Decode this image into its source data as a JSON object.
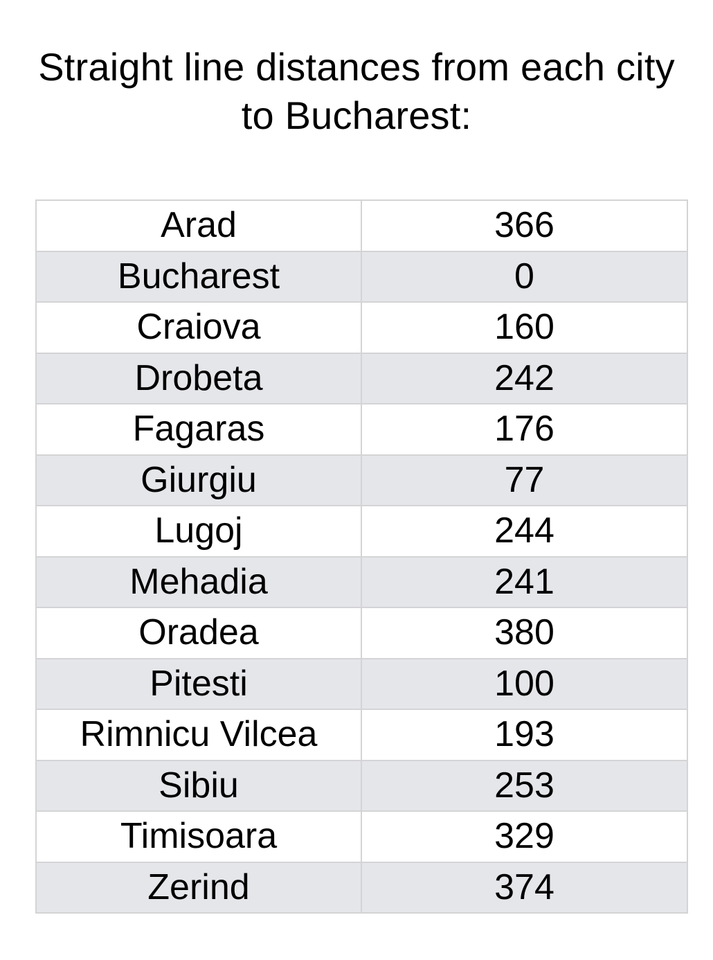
{
  "title": {
    "line1": "Straight line distances from each city",
    "line2": "to Bucharest:"
  },
  "rows": [
    {
      "city": "Arad",
      "distance": "366"
    },
    {
      "city": "Bucharest",
      "distance": "0"
    },
    {
      "city": "Craiova",
      "distance": "160"
    },
    {
      "city": "Drobeta",
      "distance": "242"
    },
    {
      "city": "Fagaras",
      "distance": "176"
    },
    {
      "city": "Giurgiu",
      "distance": "77"
    },
    {
      "city": "Lugoj",
      "distance": "244"
    },
    {
      "city": "Mehadia",
      "distance": "241"
    },
    {
      "city": "Oradea",
      "distance": "380"
    },
    {
      "city": "Pitesti",
      "distance": "100"
    },
    {
      "city": "Rimnicu Vilcea",
      "distance": "193"
    },
    {
      "city": "Sibiu",
      "distance": "253"
    },
    {
      "city": "Timisoara",
      "distance": "329"
    },
    {
      "city": "Zerind",
      "distance": "374"
    }
  ],
  "colors": {
    "stripe": "#e5e6ea",
    "border": "#d4d4d6"
  }
}
